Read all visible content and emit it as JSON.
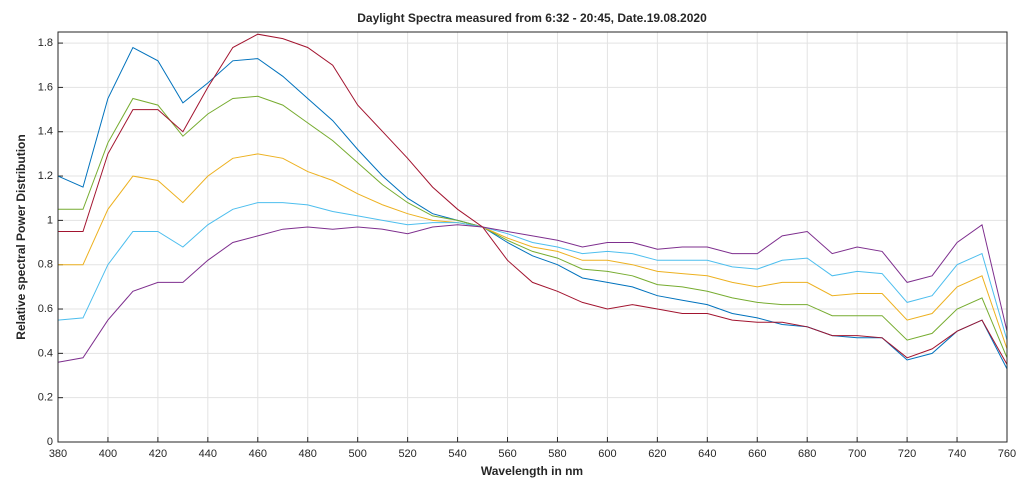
{
  "chart_data": {
    "type": "line",
    "title": "Daylight Spectra measured from 6:32 - 20:45, Date.19.08.2020",
    "x_label": "Wavelength in nm",
    "y_label": "Relative spectral Power Distribution",
    "x": [
      380,
      390,
      400,
      410,
      420,
      430,
      440,
      450,
      460,
      470,
      480,
      490,
      500,
      510,
      520,
      530,
      540,
      550,
      560,
      570,
      580,
      590,
      600,
      610,
      620,
      630,
      640,
      650,
      660,
      670,
      680,
      690,
      700,
      710,
      720,
      730,
      740,
      750,
      760
    ],
    "series": [
      {
        "color": "#0072BD",
        "values": [
          1.2,
          1.15,
          1.55,
          1.78,
          1.72,
          1.53,
          1.62,
          1.72,
          1.73,
          1.65,
          1.55,
          1.45,
          1.32,
          1.2,
          1.1,
          1.03,
          1.0,
          0.97,
          0.9,
          0.84,
          0.8,
          0.74,
          0.72,
          0.7,
          0.66,
          0.64,
          0.62,
          0.58,
          0.56,
          0.53,
          0.52,
          0.48,
          0.47,
          0.47,
          0.37,
          0.4,
          0.5,
          0.55,
          0.33
        ]
      },
      {
        "color": "#77AC30",
        "values": [
          1.05,
          1.05,
          1.35,
          1.55,
          1.52,
          1.38,
          1.48,
          1.55,
          1.56,
          1.52,
          1.44,
          1.36,
          1.26,
          1.16,
          1.08,
          1.02,
          1.0,
          0.97,
          0.91,
          0.86,
          0.83,
          0.78,
          0.77,
          0.75,
          0.71,
          0.7,
          0.68,
          0.65,
          0.63,
          0.62,
          0.62,
          0.57,
          0.57,
          0.57,
          0.46,
          0.49,
          0.6,
          0.65,
          0.38
        ]
      },
      {
        "color": "#EDB120",
        "values": [
          0.8,
          0.8,
          1.05,
          1.2,
          1.18,
          1.08,
          1.2,
          1.28,
          1.3,
          1.28,
          1.22,
          1.18,
          1.12,
          1.07,
          1.03,
          1.0,
          0.99,
          0.97,
          0.92,
          0.88,
          0.86,
          0.82,
          0.82,
          0.8,
          0.77,
          0.76,
          0.75,
          0.72,
          0.7,
          0.72,
          0.72,
          0.66,
          0.67,
          0.67,
          0.55,
          0.58,
          0.7,
          0.75,
          0.42
        ]
      },
      {
        "color": "#4DBEEE",
        "values": [
          0.55,
          0.56,
          0.8,
          0.95,
          0.95,
          0.88,
          0.98,
          1.05,
          1.08,
          1.08,
          1.07,
          1.04,
          1.02,
          1.0,
          0.98,
          0.99,
          0.99,
          0.97,
          0.94,
          0.9,
          0.88,
          0.85,
          0.86,
          0.85,
          0.82,
          0.82,
          0.82,
          0.79,
          0.78,
          0.82,
          0.83,
          0.75,
          0.77,
          0.76,
          0.63,
          0.66,
          0.8,
          0.85,
          0.46
        ]
      },
      {
        "color": "#7E2F8E",
        "values": [
          0.36,
          0.38,
          0.55,
          0.68,
          0.72,
          0.72,
          0.82,
          0.9,
          0.93,
          0.96,
          0.97,
          0.96,
          0.97,
          0.96,
          0.94,
          0.97,
          0.98,
          0.97,
          0.95,
          0.93,
          0.91,
          0.88,
          0.9,
          0.9,
          0.87,
          0.88,
          0.88,
          0.85,
          0.85,
          0.93,
          0.95,
          0.85,
          0.88,
          0.86,
          0.72,
          0.75,
          0.9,
          0.98,
          0.5
        ]
      },
      {
        "color": "#A2142F",
        "values": [
          0.95,
          0.95,
          1.3,
          1.5,
          1.5,
          1.4,
          1.6,
          1.78,
          1.84,
          1.82,
          1.78,
          1.7,
          1.52,
          1.4,
          1.28,
          1.15,
          1.05,
          0.97,
          0.82,
          0.72,
          0.68,
          0.63,
          0.6,
          0.62,
          0.6,
          0.58,
          0.58,
          0.55,
          0.54,
          0.54,
          0.52,
          0.48,
          0.48,
          0.47,
          0.38,
          0.42,
          0.5,
          0.55,
          0.35
        ]
      }
    ],
    "xlim": [
      380,
      760
    ],
    "ylim": [
      0,
      1.85
    ],
    "xticks": [
      380,
      400,
      420,
      440,
      460,
      480,
      500,
      520,
      540,
      560,
      580,
      600,
      620,
      640,
      660,
      680,
      700,
      720,
      740,
      760
    ],
    "yticks": [
      0,
      0.2,
      0.4,
      0.6,
      0.8,
      1,
      1.2,
      1.4,
      1.6,
      1.8
    ],
    "grid": true
  }
}
